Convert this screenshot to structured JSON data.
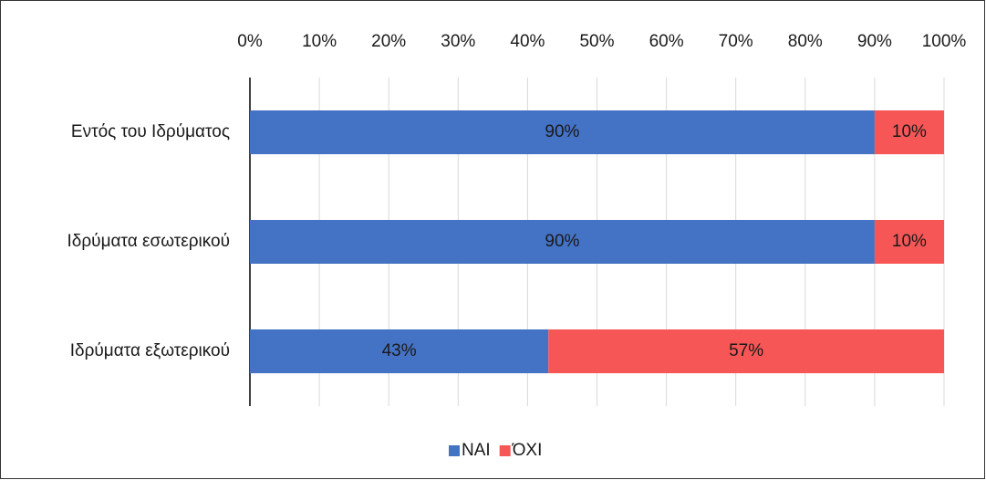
{
  "chart_data": {
    "type": "stacked-bar-horizontal",
    "categories": [
      "Εντός του Ιδρύματος",
      "Ιδρύματα εσωτερικού",
      "Ιδρύματα εξωτερικού"
    ],
    "series": [
      {
        "name": "ΝΑΙ",
        "color": "#4472c4",
        "values": [
          90,
          90,
          43
        ],
        "value_labels": [
          "90%",
          "90%",
          "43%"
        ]
      },
      {
        "name": "ΌΧΙ",
        "color": "#f75656",
        "values": [
          10,
          10,
          57
        ],
        "value_labels": [
          "10%",
          "10%",
          "57%"
        ]
      }
    ],
    "xlim": [
      0,
      100
    ],
    "xticks": [
      {
        "value": 0,
        "label": "0%"
      },
      {
        "value": 10,
        "label": "10%"
      },
      {
        "value": 20,
        "label": "20%"
      },
      {
        "value": 30,
        "label": "30%"
      },
      {
        "value": 40,
        "label": "40%"
      },
      {
        "value": 50,
        "label": "50%"
      },
      {
        "value": 60,
        "label": "60%"
      },
      {
        "value": 70,
        "label": "70%"
      },
      {
        "value": 80,
        "label": "80%"
      },
      {
        "value": 90,
        "label": "90%"
      },
      {
        "value": 100,
        "label": "100%"
      }
    ],
    "grid": true,
    "legend": "bottom"
  }
}
